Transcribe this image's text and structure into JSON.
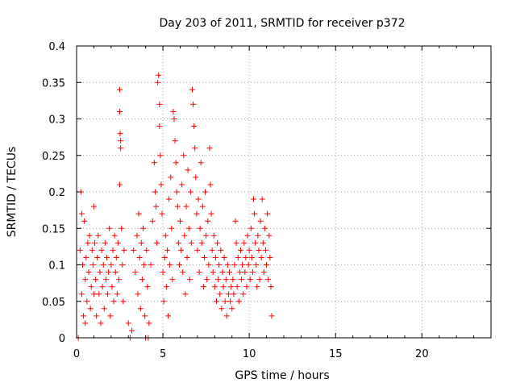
{
  "chart_data": {
    "type": "scatter",
    "title": "Day 203 of 2011, SRMTID for receiver p372",
    "xlabel": "GPS time / hours",
    "ylabel": "SRMTID / TECUs",
    "xlim": [
      0,
      24
    ],
    "ylim": [
      0,
      0.4
    ],
    "x_ticks": [
      "0",
      "5",
      "10",
      "15",
      "20"
    ],
    "x_tick_values": [
      0,
      5,
      10,
      15,
      20
    ],
    "y_ticks": [
      "0",
      "0.05",
      "0.1",
      "0.15",
      "0.2",
      "0.25",
      "0.3",
      "0.35",
      "0.4"
    ],
    "y_tick_values": [
      0,
      0.05,
      0.1,
      0.15,
      0.2,
      0.25,
      0.3,
      0.35,
      0.4
    ],
    "grid": true,
    "marker": "plus",
    "series": [
      {
        "color": "#ff0000",
        "points": [
          [
            0.1,
            0.0
          ],
          [
            0.2,
            0.12
          ],
          [
            0.25,
            0.2
          ],
          [
            0.3,
            0.17
          ],
          [
            0.3,
            0.06
          ],
          [
            0.35,
            0.1
          ],
          [
            0.4,
            0.03
          ],
          [
            0.45,
            0.16
          ],
          [
            0.5,
            0.08
          ],
          [
            0.5,
            0.02
          ],
          [
            0.55,
            0.11
          ],
          [
            0.6,
            0.05
          ],
          [
            0.65,
            0.13
          ],
          [
            0.7,
            0.09
          ],
          [
            0.75,
            0.14
          ],
          [
            0.8,
            0.04
          ],
          [
            0.85,
            0.07
          ],
          [
            0.9,
            0.12
          ],
          [
            0.95,
            0.1
          ],
          [
            1.0,
            0.06
          ],
          [
            1.0,
            0.18
          ],
          [
            1.05,
            0.13
          ],
          [
            1.1,
            0.08
          ],
          [
            1.15,
            0.03
          ],
          [
            1.2,
            0.11
          ],
          [
            1.25,
            0.14
          ],
          [
            1.3,
            0.06
          ],
          [
            1.35,
            0.09
          ],
          [
            1.4,
            0.02
          ],
          [
            1.45,
            0.12
          ],
          [
            1.5,
            0.07
          ],
          [
            1.55,
            0.1
          ],
          [
            1.6,
            0.04
          ],
          [
            1.65,
            0.13
          ],
          [
            1.7,
            0.08
          ],
          [
            1.75,
            0.11
          ],
          [
            1.8,
            0.06
          ],
          [
            1.85,
            0.09
          ],
          [
            1.9,
            0.15
          ],
          [
            1.95,
            0.03
          ],
          [
            2.0,
            0.1
          ],
          [
            2.05,
            0.07
          ],
          [
            2.1,
            0.12
          ],
          [
            2.15,
            0.05
          ],
          [
            2.2,
            0.14
          ],
          [
            2.25,
            0.09
          ],
          [
            2.3,
            0.11
          ],
          [
            2.35,
            0.06
          ],
          [
            2.4,
            0.13
          ],
          [
            2.45,
            0.08
          ],
          [
            2.5,
            0.34
          ],
          [
            2.5,
            0.31
          ],
          [
            2.52,
            0.28
          ],
          [
            2.55,
            0.27
          ],
          [
            2.55,
            0.26
          ],
          [
            2.5,
            0.21
          ],
          [
            2.6,
            0.15
          ],
          [
            2.65,
            0.1
          ],
          [
            2.7,
            0.05
          ],
          [
            2.75,
            0.12
          ],
          [
            3.0,
            0.02
          ],
          [
            3.1,
            0.0
          ],
          [
            3.2,
            0.01
          ],
          [
            3.3,
            0.12
          ],
          [
            3.4,
            0.09
          ],
          [
            3.5,
            0.14
          ],
          [
            3.55,
            0.06
          ],
          [
            3.6,
            0.17
          ],
          [
            3.65,
            0.11
          ],
          [
            3.7,
            0.04
          ],
          [
            3.75,
            0.13
          ],
          [
            3.8,
            0.08
          ],
          [
            3.85,
            0.15
          ],
          [
            3.9,
            0.1
          ],
          [
            3.95,
            0.03
          ],
          [
            4.0,
            0.0
          ],
          [
            4.05,
            0.12
          ],
          [
            4.1,
            0.07
          ],
          [
            4.15,
            0.0
          ],
          [
            4.2,
            0.02
          ],
          [
            4.3,
            0.1
          ],
          [
            4.4,
            0.16
          ],
          [
            4.5,
            0.24
          ],
          [
            4.55,
            0.2
          ],
          [
            4.6,
            0.18
          ],
          [
            4.65,
            0.13
          ],
          [
            4.7,
            0.35
          ],
          [
            4.75,
            0.36
          ],
          [
            4.8,
            0.32
          ],
          [
            4.8,
            0.29
          ],
          [
            4.85,
            0.25
          ],
          [
            4.9,
            0.21
          ],
          [
            4.95,
            0.17
          ],
          [
            5.0,
            0.09
          ],
          [
            5.05,
            0.05
          ],
          [
            5.1,
            0.11
          ],
          [
            5.15,
            0.14
          ],
          [
            5.2,
            0.07
          ],
          [
            5.25,
            0.12
          ],
          [
            5.3,
            0.03
          ],
          [
            5.35,
            0.19
          ],
          [
            5.4,
            0.1
          ],
          [
            5.45,
            0.22
          ],
          [
            5.5,
            0.15
          ],
          [
            5.55,
            0.08
          ],
          [
            5.6,
            0.31
          ],
          [
            5.65,
            0.3
          ],
          [
            5.7,
            0.27
          ],
          [
            5.75,
            0.24
          ],
          [
            5.8,
            0.2
          ],
          [
            5.85,
            0.18
          ],
          [
            5.9,
            0.13
          ],
          [
            5.95,
            0.1
          ],
          [
            6.0,
            0.16
          ],
          [
            6.05,
            0.12
          ],
          [
            6.1,
            0.21
          ],
          [
            6.15,
            0.09
          ],
          [
            6.2,
            0.25
          ],
          [
            6.25,
            0.14
          ],
          [
            6.3,
            0.06
          ],
          [
            6.35,
            0.18
          ],
          [
            6.4,
            0.11
          ],
          [
            6.45,
            0.23
          ],
          [
            6.5,
            0.15
          ],
          [
            6.55,
            0.08
          ],
          [
            6.6,
            0.2
          ],
          [
            6.65,
            0.13
          ],
          [
            6.7,
            0.34
          ],
          [
            6.75,
            0.32
          ],
          [
            6.8,
            0.29
          ],
          [
            6.85,
            0.26
          ],
          [
            6.9,
            0.22
          ],
          [
            6.95,
            0.17
          ],
          [
            7.0,
            0.12
          ],
          [
            7.05,
            0.19
          ],
          [
            7.1,
            0.09
          ],
          [
            7.15,
            0.15
          ],
          [
            7.2,
            0.24
          ],
          [
            7.25,
            0.13
          ],
          [
            7.3,
            0.18
          ],
          [
            7.35,
            0.07
          ],
          [
            7.4,
            0.11
          ],
          [
            7.45,
            0.2
          ],
          [
            7.5,
            0.14
          ],
          [
            7.55,
            0.08
          ],
          [
            7.6,
            0.16
          ],
          [
            7.65,
            0.1
          ],
          [
            7.7,
            0.26
          ],
          [
            7.75,
            0.21
          ],
          [
            7.8,
            0.17
          ],
          [
            7.85,
            0.12
          ],
          [
            7.9,
            0.09
          ],
          [
            7.95,
            0.14
          ],
          [
            8.0,
            0.07
          ],
          [
            8.05,
            0.11
          ],
          [
            8.1,
            0.05
          ],
          [
            8.15,
            0.13
          ],
          [
            8.2,
            0.08
          ],
          [
            8.25,
            0.1
          ],
          [
            8.3,
            0.06
          ],
          [
            8.35,
            0.12
          ],
          [
            8.4,
            0.04
          ],
          [
            8.45,
            0.09
          ],
          [
            8.5,
            0.07
          ],
          [
            8.55,
            0.11
          ],
          [
            8.6,
            0.05
          ],
          [
            8.65,
            0.08
          ],
          [
            8.7,
            0.03
          ],
          [
            8.75,
            0.1
          ],
          [
            8.8,
            0.06
          ],
          [
            8.85,
            0.09
          ],
          [
            8.9,
            0.05
          ],
          [
            8.95,
            0.07
          ],
          [
            9.0,
            0.04
          ],
          [
            9.05,
            0.08
          ],
          [
            9.1,
            0.06
          ],
          [
            9.15,
            0.1
          ],
          [
            9.2,
            0.16
          ],
          [
            9.25,
            0.13
          ],
          [
            9.3,
            0.07
          ],
          [
            9.35,
            0.11
          ],
          [
            9.4,
            0.05
          ],
          [
            9.45,
            0.09
          ],
          [
            9.5,
            0.12
          ],
          [
            9.55,
            0.08
          ],
          [
            9.6,
            0.1
          ],
          [
            9.65,
            0.06
          ],
          [
            9.7,
            0.13
          ],
          [
            9.75,
            0.09
          ],
          [
            9.8,
            0.11
          ],
          [
            9.85,
            0.07
          ],
          [
            9.9,
            0.14
          ],
          [
            9.95,
            0.1
          ],
          [
            10.0,
            0.12
          ],
          [
            10.05,
            0.08
          ],
          [
            10.1,
            0.15
          ],
          [
            10.15,
            0.11
          ],
          [
            10.2,
            0.09
          ],
          [
            10.25,
            0.19
          ],
          [
            10.3,
            0.17
          ],
          [
            10.35,
            0.13
          ],
          [
            10.4,
            0.1
          ],
          [
            10.45,
            0.07
          ],
          [
            10.5,
            0.14
          ],
          [
            10.55,
            0.12
          ],
          [
            10.6,
            0.08
          ],
          [
            10.65,
            0.16
          ],
          [
            10.7,
            0.11
          ],
          [
            10.75,
            0.19
          ],
          [
            10.8,
            0.13
          ],
          [
            10.85,
            0.09
          ],
          [
            10.9,
            0.15
          ],
          [
            10.95,
            0.12
          ],
          [
            11.0,
            0.1
          ],
          [
            11.05,
            0.17
          ],
          [
            11.1,
            0.08
          ],
          [
            11.15,
            0.14
          ],
          [
            11.2,
            0.11
          ],
          [
            11.25,
            0.07
          ],
          [
            11.3,
            0.03
          ]
        ]
      }
    ]
  }
}
